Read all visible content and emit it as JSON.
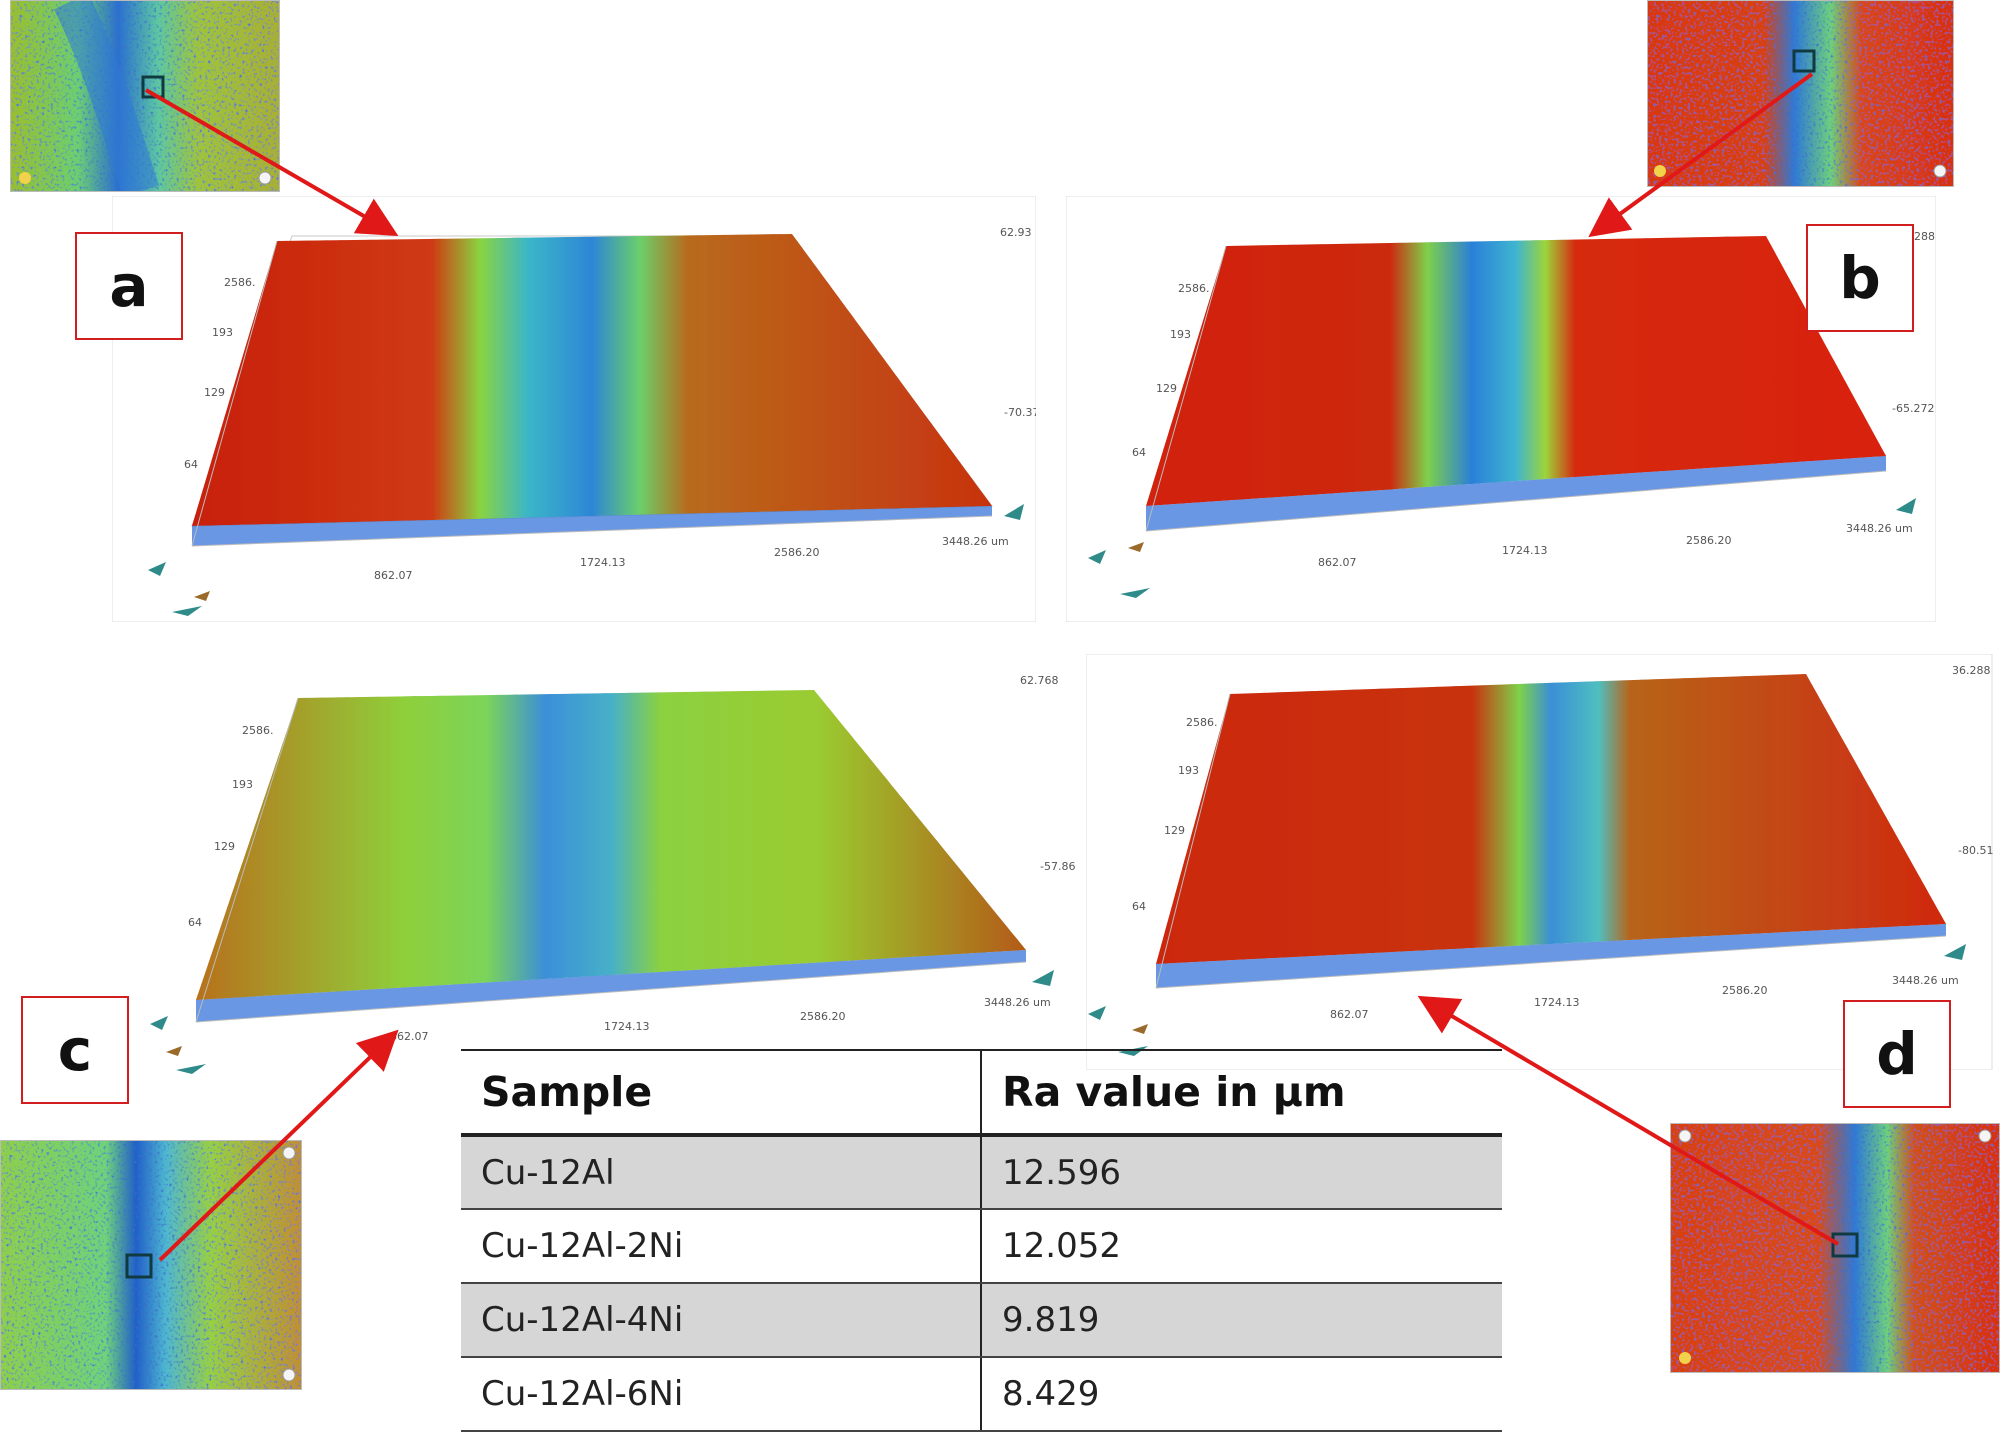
{
  "panels": [
    {
      "id": "a",
      "label": "a",
      "y_ticks": [
        "2586.",
        "193",
        "129",
        "64"
      ],
      "x_ticks": [
        "862.07",
        "1724.13",
        "2586.20",
        "3448.26 um"
      ],
      "z_ticks": [
        "62.93",
        "-70.37"
      ]
    },
    {
      "id": "b",
      "label": "b",
      "y_ticks": [
        "2586.",
        "193",
        "129",
        "64"
      ],
      "x_ticks": [
        "862.07",
        "1724.13",
        "2586.20",
        "3448.26 um"
      ],
      "z_ticks": [
        "288",
        "-65.272"
      ]
    },
    {
      "id": "c",
      "label": "c",
      "y_ticks": [
        "2586.",
        "193",
        "129",
        "64"
      ],
      "x_ticks": [
        "862.07",
        "1724.13",
        "2586.20",
        "3448.26 um"
      ],
      "z_ticks": [
        "62.768",
        "-57.861"
      ]
    },
    {
      "id": "d",
      "label": "d",
      "y_ticks": [
        "2586.",
        "193",
        "129",
        "64"
      ],
      "x_ticks": [
        "862.07",
        "1724.13",
        "2586.20",
        "3448.26 um"
      ],
      "z_ticks": [
        "36.288",
        "-80.51"
      ]
    }
  ],
  "table": {
    "headers": [
      "Sample",
      "Ra value in µm"
    ],
    "rows": [
      {
        "sample": "Cu-12Al",
        "ra": "12.596"
      },
      {
        "sample": "Cu-12Al-2Ni",
        "ra": "12.052"
      },
      {
        "sample": "Cu-12Al-4Ni",
        "ra": "9.819"
      },
      {
        "sample": "Cu-12Al-6Ni",
        "ra": "8.429"
      }
    ]
  },
  "colors": {
    "red": "#d42a12",
    "green": "#7ed63a",
    "blue": "#2a6bd8",
    "label_border": "#d21e1e",
    "arrow": "#e01818"
  }
}
